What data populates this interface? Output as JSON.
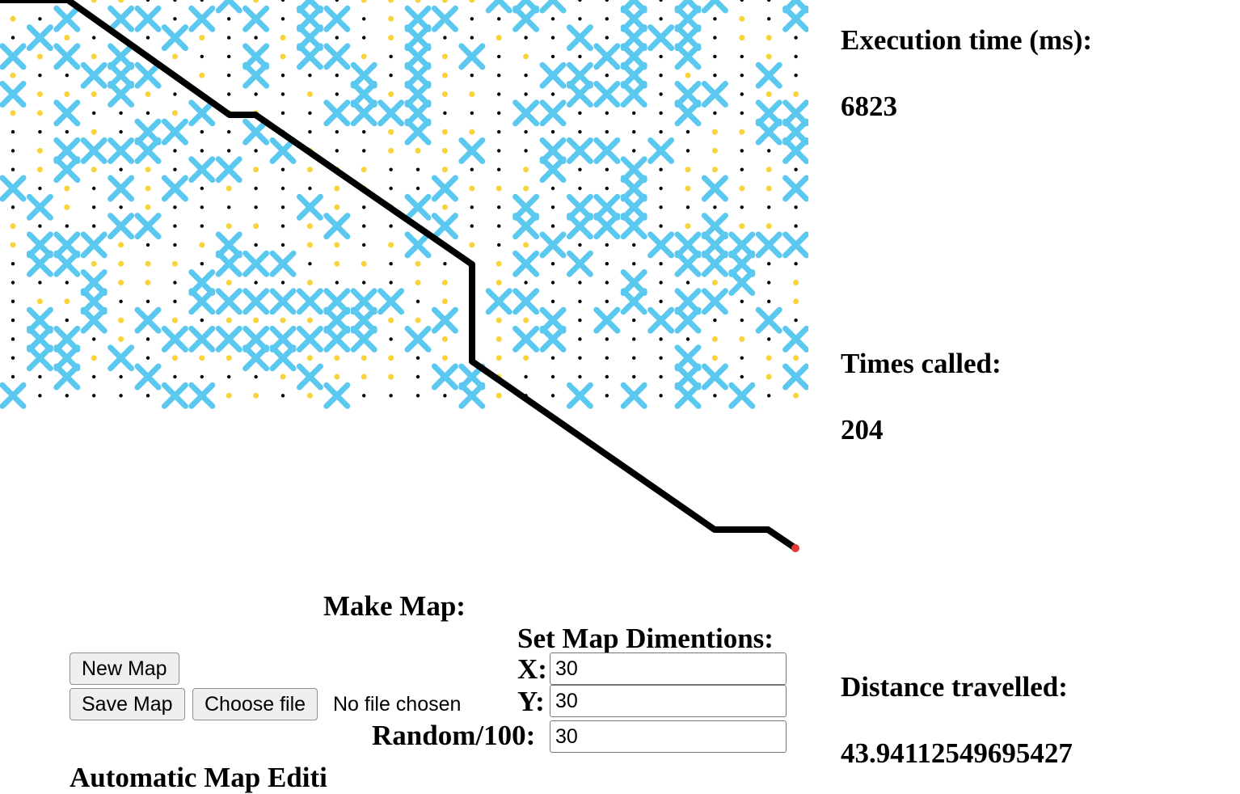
{
  "map": {
    "columns": 30,
    "rows": 21,
    "colors": {
      "wall": "#5bc8ef",
      "explored": "#f8d33a",
      "empty": "#000000",
      "path": "#000000",
      "goal": "#e53935"
    }
  },
  "stats": {
    "execution_time_label": "Execution time (ms):",
    "execution_time_value": "6823",
    "times_called_label": "Times called:",
    "times_called_value": "204",
    "distance_label": "Distance travelled:",
    "distance_value": "43.94112549695427"
  },
  "controls": {
    "make_map_heading": "Make Map:",
    "new_map_label": "New Map",
    "save_map_label": "Save Map",
    "choose_file_label": "Choose file",
    "no_file_text": "No file chosen",
    "dimensions_heading": "Set Map Dimentions:",
    "x_label": "X:",
    "x_value": "30",
    "y_label": "Y:",
    "y_value": "30",
    "random_label": "Random/100:",
    "random_value": "30",
    "auto_edit_heading": "Automatic Map Editi"
  }
}
